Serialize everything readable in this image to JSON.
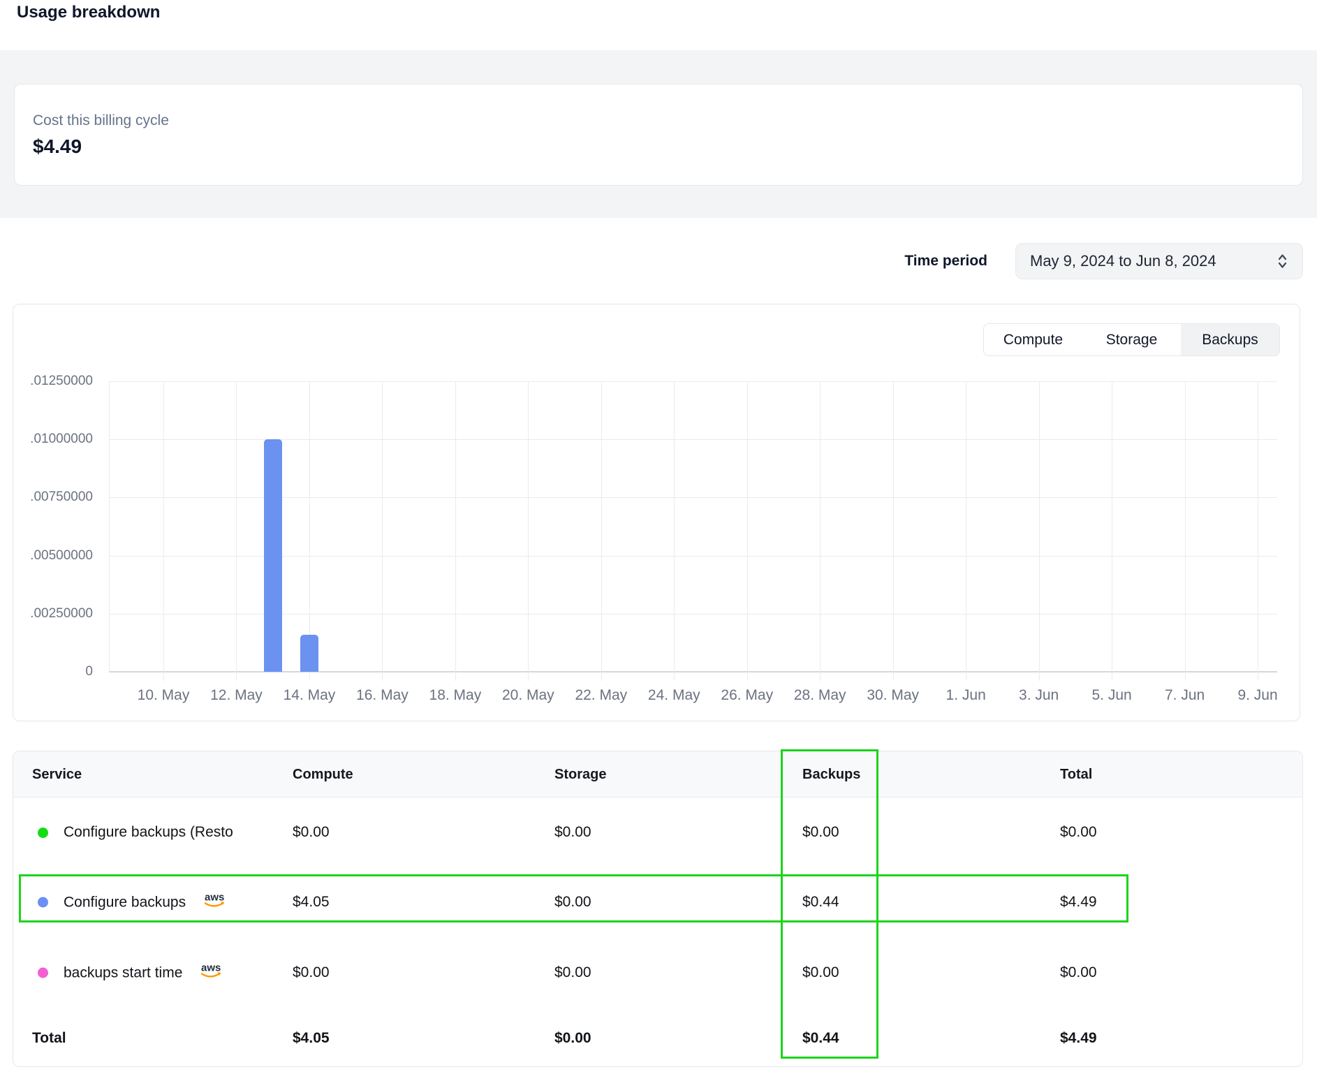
{
  "page_title": "Usage breakdown",
  "summary": {
    "label": "Cost this billing cycle",
    "value": "$4.49"
  },
  "time_period": {
    "label": "Time period",
    "value": "May 9, 2024 to Jun 8, 2024"
  },
  "chart": {
    "tabs": [
      {
        "label": "Compute",
        "active": false
      },
      {
        "label": "Storage",
        "active": false
      },
      {
        "label": "Backups",
        "active": true
      }
    ]
  },
  "chart_data": {
    "type": "bar",
    "title": "Backups usage cost per day",
    "legend_position": "none",
    "grid": true,
    "ylim": [
      0,
      0.0125
    ],
    "ylabel": "",
    "xlabel": "",
    "bar_color": "#6b92f0",
    "yticks": [
      {
        "label": ".01250000",
        "value": 0.0125
      },
      {
        "label": ".01000000",
        "value": 0.01
      },
      {
        "label": ".00750000",
        "value": 0.0075
      },
      {
        "label": ".00500000",
        "value": 0.005
      },
      {
        "label": ".00250000",
        "value": 0.0025
      },
      {
        "label": "0",
        "value": 0
      }
    ],
    "xticks": [
      "10. May",
      "12. May",
      "14. May",
      "16. May",
      "18. May",
      "20. May",
      "22. May",
      "24. May",
      "26. May",
      "28. May",
      "30. May",
      "1. Jun",
      "3. Jun",
      "5. Jun",
      "7. Jun",
      "9. Jun"
    ],
    "bars": [
      {
        "x": "13. May",
        "day": 13,
        "value": 0.01
      },
      {
        "x": "14. May",
        "day": 14,
        "value": 0.0016
      }
    ]
  },
  "table": {
    "columns": [
      "Service",
      "Compute",
      "Storage",
      "Backups",
      "Total"
    ],
    "rows": [
      {
        "service": "Configure backups (Resto",
        "dot_color": "#14dd14",
        "aws_badge": false,
        "values": [
          "$0.00",
          "$0.00",
          "$0.00",
          "$0.00"
        ],
        "highlighted": false
      },
      {
        "service": "Configure backups",
        "dot_color": "#6b8ff2",
        "aws_badge": true,
        "values": [
          "$4.05",
          "$0.00",
          "$0.44",
          "$4.49"
        ],
        "highlighted": true
      },
      {
        "service": "backups start time",
        "dot_color": "#f45fd4",
        "aws_badge": true,
        "values": [
          "$0.00",
          "$0.00",
          "$0.00",
          "$0.00"
        ],
        "highlighted": false
      }
    ],
    "total_row": {
      "label": "Total",
      "values": [
        "$4.05",
        "$0.00",
        "$0.44",
        "$4.49"
      ]
    }
  },
  "annotations": {
    "color": "#1cd41c",
    "column_highlight": "Backups",
    "row_highlight": "Configure backups"
  },
  "aws_icon_label": "aws"
}
